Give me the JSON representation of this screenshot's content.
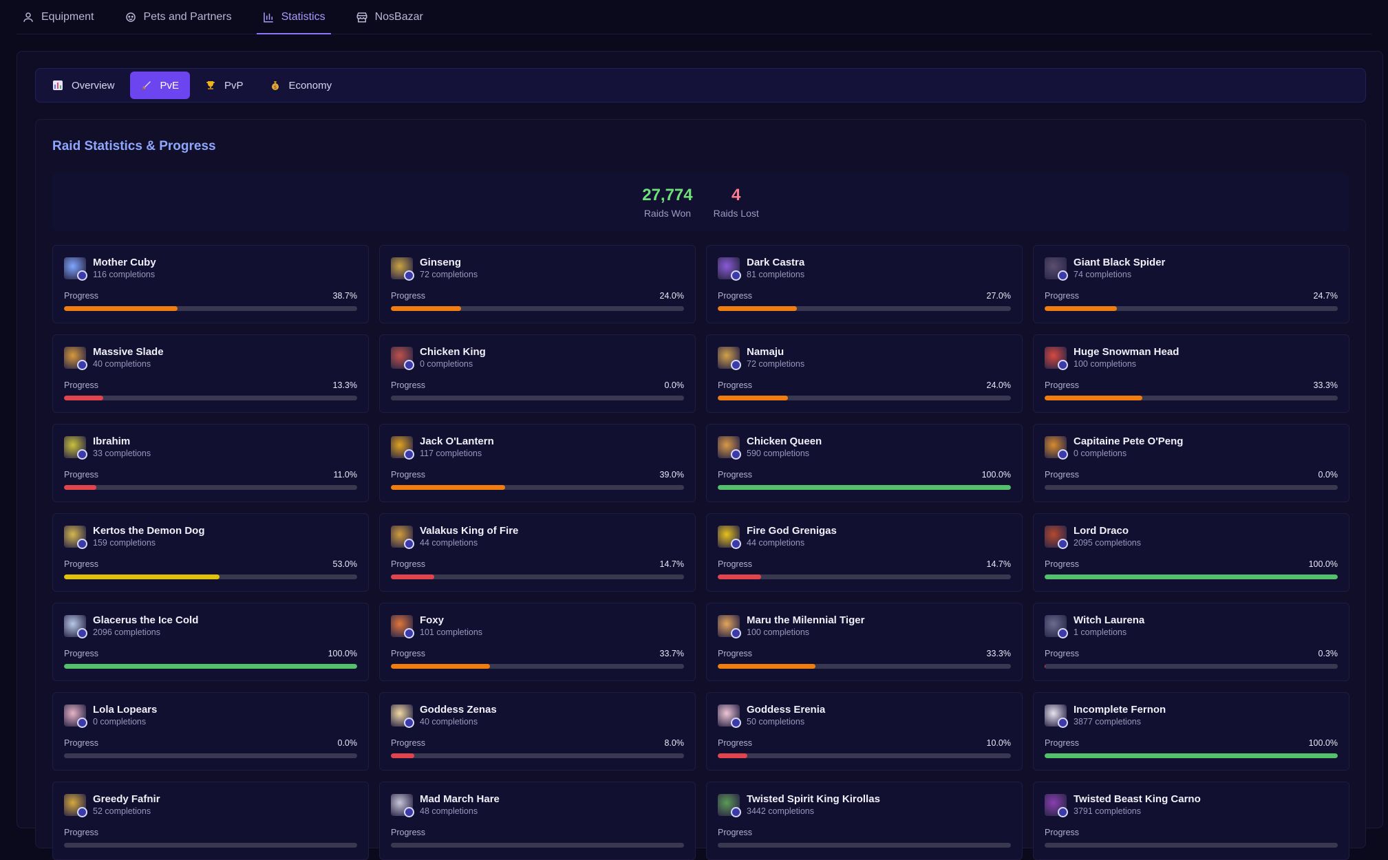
{
  "top_nav": [
    {
      "label": "Equipment",
      "icon": "user-icon",
      "active": false
    },
    {
      "label": "Pets and Partners",
      "icon": "paw-icon",
      "active": false
    },
    {
      "label": "Statistics",
      "icon": "bar-chart-icon",
      "active": true
    },
    {
      "label": "NosBazar",
      "icon": "store-icon",
      "active": false
    }
  ],
  "sub_tabs": [
    {
      "label": "Overview",
      "icon": "chart-emoji-icon",
      "active": false
    },
    {
      "label": "PvE",
      "icon": "sword-emoji-icon",
      "active": true
    },
    {
      "label": "PvP",
      "icon": "trophy-emoji-icon",
      "active": false
    },
    {
      "label": "Economy",
      "icon": "money-bag-emoji-icon",
      "active": false
    }
  ],
  "section": {
    "title": "Raid Statistics & Progress"
  },
  "summary": {
    "won_value": "27,774",
    "won_label": "Raids Won",
    "lost_value": "4",
    "lost_label": "Raids Lost"
  },
  "progress_label": "Progress",
  "colors": {
    "green": "#54c06c",
    "orange": "#ef7d10",
    "yellow": "#e0c20d",
    "red": "#e0454e",
    "track": "#3a3850"
  },
  "raids": [
    {
      "name": "Mother Cuby",
      "completions": "116 completions",
      "pct": "38.7%",
      "progress": 38.7,
      "color": "#ef7d10",
      "icon": "mother-cuby-icon",
      "icon_color": "#7ea7ff"
    },
    {
      "name": "Ginseng",
      "completions": "72 completions",
      "pct": "24.0%",
      "progress": 24.0,
      "color": "#ef7d10",
      "icon": "ginseng-icon",
      "icon_color": "#c9a441"
    },
    {
      "name": "Dark Castra",
      "completions": "81 completions",
      "pct": "27.0%",
      "progress": 27.0,
      "color": "#ef7d10",
      "icon": "dark-castra-icon",
      "icon_color": "#8a5bd6"
    },
    {
      "name": "Giant Black Spider",
      "completions": "74 completions",
      "pct": "24.7%",
      "progress": 24.7,
      "color": "#ef7d10",
      "icon": "spider-icon",
      "icon_color": "#5a4f6e"
    },
    {
      "name": "Massive Slade",
      "completions": "40 completions",
      "pct": "13.3%",
      "progress": 13.3,
      "color": "#e0454e",
      "icon": "massive-slade-icon",
      "icon_color": "#d79a3b"
    },
    {
      "name": "Chicken King",
      "completions": "0 completions",
      "pct": "0.0%",
      "progress": 0.0,
      "color": "#e0454e",
      "icon": "chicken-king-icon",
      "icon_color": "#c0524b"
    },
    {
      "name": "Namaju",
      "completions": "72 completions",
      "pct": "24.0%",
      "progress": 24.0,
      "color": "#ef7d10",
      "icon": "namaju-icon",
      "icon_color": "#d1a24a"
    },
    {
      "name": "Huge Snowman Head",
      "completions": "100 completions",
      "pct": "33.3%",
      "progress": 33.3,
      "color": "#ef7d10",
      "icon": "snowman-icon",
      "icon_color": "#d8493f"
    },
    {
      "name": "Ibrahim",
      "completions": "33 completions",
      "pct": "11.0%",
      "progress": 11.0,
      "color": "#e0454e",
      "icon": "ibrahim-icon",
      "icon_color": "#c9c23a"
    },
    {
      "name": "Jack O'Lantern",
      "completions": "117 completions",
      "pct": "39.0%",
      "progress": 39.0,
      "color": "#ef7d10",
      "icon": "pumpkin-icon",
      "icon_color": "#e0a21e"
    },
    {
      "name": "Chicken Queen",
      "completions": "590 completions",
      "pct": "100.0%",
      "progress": 100.0,
      "color": "#54c06c",
      "icon": "chicken-queen-icon",
      "icon_color": "#d99a46"
    },
    {
      "name": "Capitaine Pete O'Peng",
      "completions": "0 completions",
      "pct": "0.0%",
      "progress": 0.0,
      "color": "#e0454e",
      "icon": "pirate-icon",
      "icon_color": "#d78b2e"
    },
    {
      "name": "Kertos the Demon Dog",
      "completions": "159 completions",
      "pct": "53.0%",
      "progress": 53.0,
      "color": "#e0c20d",
      "icon": "demon-dog-icon",
      "icon_color": "#d5b84e"
    },
    {
      "name": "Valakus King of Fire",
      "completions": "44 completions",
      "pct": "14.7%",
      "progress": 14.7,
      "color": "#e0454e",
      "icon": "fire-king-icon",
      "icon_color": "#d09c3c"
    },
    {
      "name": "Fire God Grenigas",
      "completions": "44 completions",
      "pct": "14.7%",
      "progress": 14.7,
      "color": "#e0454e",
      "icon": "fire-god-icon",
      "icon_color": "#e6c21c"
    },
    {
      "name": "Lord Draco",
      "completions": "2095 completions",
      "pct": "100.0%",
      "progress": 100.0,
      "color": "#54c06c",
      "icon": "dragon-icon",
      "icon_color": "#b5492e"
    },
    {
      "name": "Glacerus the Ice Cold",
      "completions": "2096 completions",
      "pct": "100.0%",
      "progress": 100.0,
      "color": "#54c06c",
      "icon": "ice-icon",
      "icon_color": "#b7c9e6"
    },
    {
      "name": "Foxy",
      "completions": "101 completions",
      "pct": "33.7%",
      "progress": 33.7,
      "color": "#ef7d10",
      "icon": "fox-icon",
      "icon_color": "#e0763b"
    },
    {
      "name": "Maru the Milennial Tiger",
      "completions": "100 completions",
      "pct": "33.3%",
      "progress": 33.3,
      "color": "#ef7d10",
      "icon": "tiger-icon",
      "icon_color": "#e3a55c"
    },
    {
      "name": "Witch Laurena",
      "completions": "1 completions",
      "pct": "0.3%",
      "progress": 0.3,
      "color": "#e0454e",
      "icon": "witch-icon",
      "icon_color": "#6a6c8e"
    },
    {
      "name": "Lola Lopears",
      "completions": "0 completions",
      "pct": "0.0%",
      "progress": 0.0,
      "color": "#e0454e",
      "icon": "lola-icon",
      "icon_color": "#e6b4c5"
    },
    {
      "name": "Goddess Zenas",
      "completions": "40 completions",
      "pct": "8.0%",
      "progress": 8.0,
      "color": "#e0454e",
      "icon": "zenas-icon",
      "icon_color": "#f0d9a3"
    },
    {
      "name": "Goddess Erenia",
      "completions": "50 completions",
      "pct": "10.0%",
      "progress": 10.0,
      "color": "#e0454e",
      "icon": "erenia-icon",
      "icon_color": "#efc6d6"
    },
    {
      "name": "Incomplete Fernon",
      "completions": "3877 completions",
      "pct": "100.0%",
      "progress": 100.0,
      "color": "#54c06c",
      "icon": "fernon-icon",
      "icon_color": "#e8e2f0"
    },
    {
      "name": "Greedy Fafnir",
      "completions": "52 completions",
      "pct": "",
      "progress": 0,
      "color": "#ef7d10",
      "icon": "fafnir-icon",
      "icon_color": "#d5a93c"
    },
    {
      "name": "Mad March Hare",
      "completions": "48 completions",
      "pct": "",
      "progress": 0,
      "color": "#ef7d10",
      "icon": "hare-icon",
      "icon_color": "#c7c5d8"
    },
    {
      "name": "Twisted Spirit King Kirollas",
      "completions": "3442 completions",
      "pct": "",
      "progress": 0,
      "color": "#54c06c",
      "icon": "kirollas-icon",
      "icon_color": "#5b9a55"
    },
    {
      "name": "Twisted Beast King Carno",
      "completions": "3791 completions",
      "pct": "",
      "progress": 0,
      "color": "#54c06c",
      "icon": "carno-icon",
      "icon_color": "#8a3fb0"
    }
  ]
}
